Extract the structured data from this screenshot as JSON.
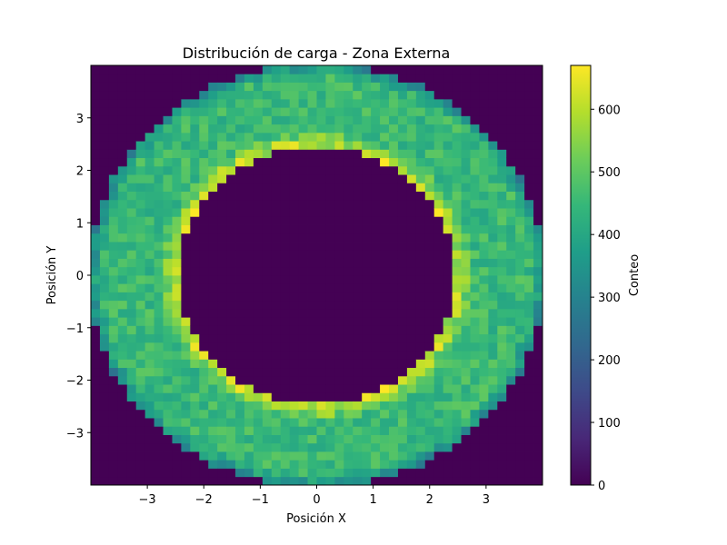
{
  "chart_data": {
    "type": "heatmap",
    "title": "Distribución de carga - Zona Externa",
    "xlabel": "Posición X",
    "ylabel": "Posición Y",
    "xlim": [
      -4,
      4
    ],
    "ylim": [
      -4,
      4
    ],
    "xticks": [
      -3,
      -2,
      -1,
      0,
      1,
      2,
      3
    ],
    "yticks": [
      -3,
      -2,
      -1,
      0,
      1,
      2,
      3
    ],
    "xtick_labels": [
      "−3",
      "−2",
      "−1",
      "0",
      "1",
      "2",
      "3"
    ],
    "ytick_labels": [
      "−3",
      "−2",
      "−1",
      "0",
      "1",
      "2",
      "3"
    ],
    "bins": [
      50,
      50
    ],
    "colormap": "viridis",
    "grid": false,
    "colorbar": {
      "label": "Conteo",
      "range": [
        0,
        670
      ],
      "ticks": [
        0,
        100,
        200,
        300,
        400,
        500,
        600
      ],
      "tick_labels": [
        "0",
        "100",
        "200",
        "300",
        "400",
        "500",
        "600"
      ]
    },
    "distribution": {
      "shape": "annulus",
      "inner_radius": 2.5,
      "outer_radius": 4.0,
      "bulk_count": 450,
      "inner_edge_peak_count": 640,
      "outer_edge_count": 330
    }
  }
}
